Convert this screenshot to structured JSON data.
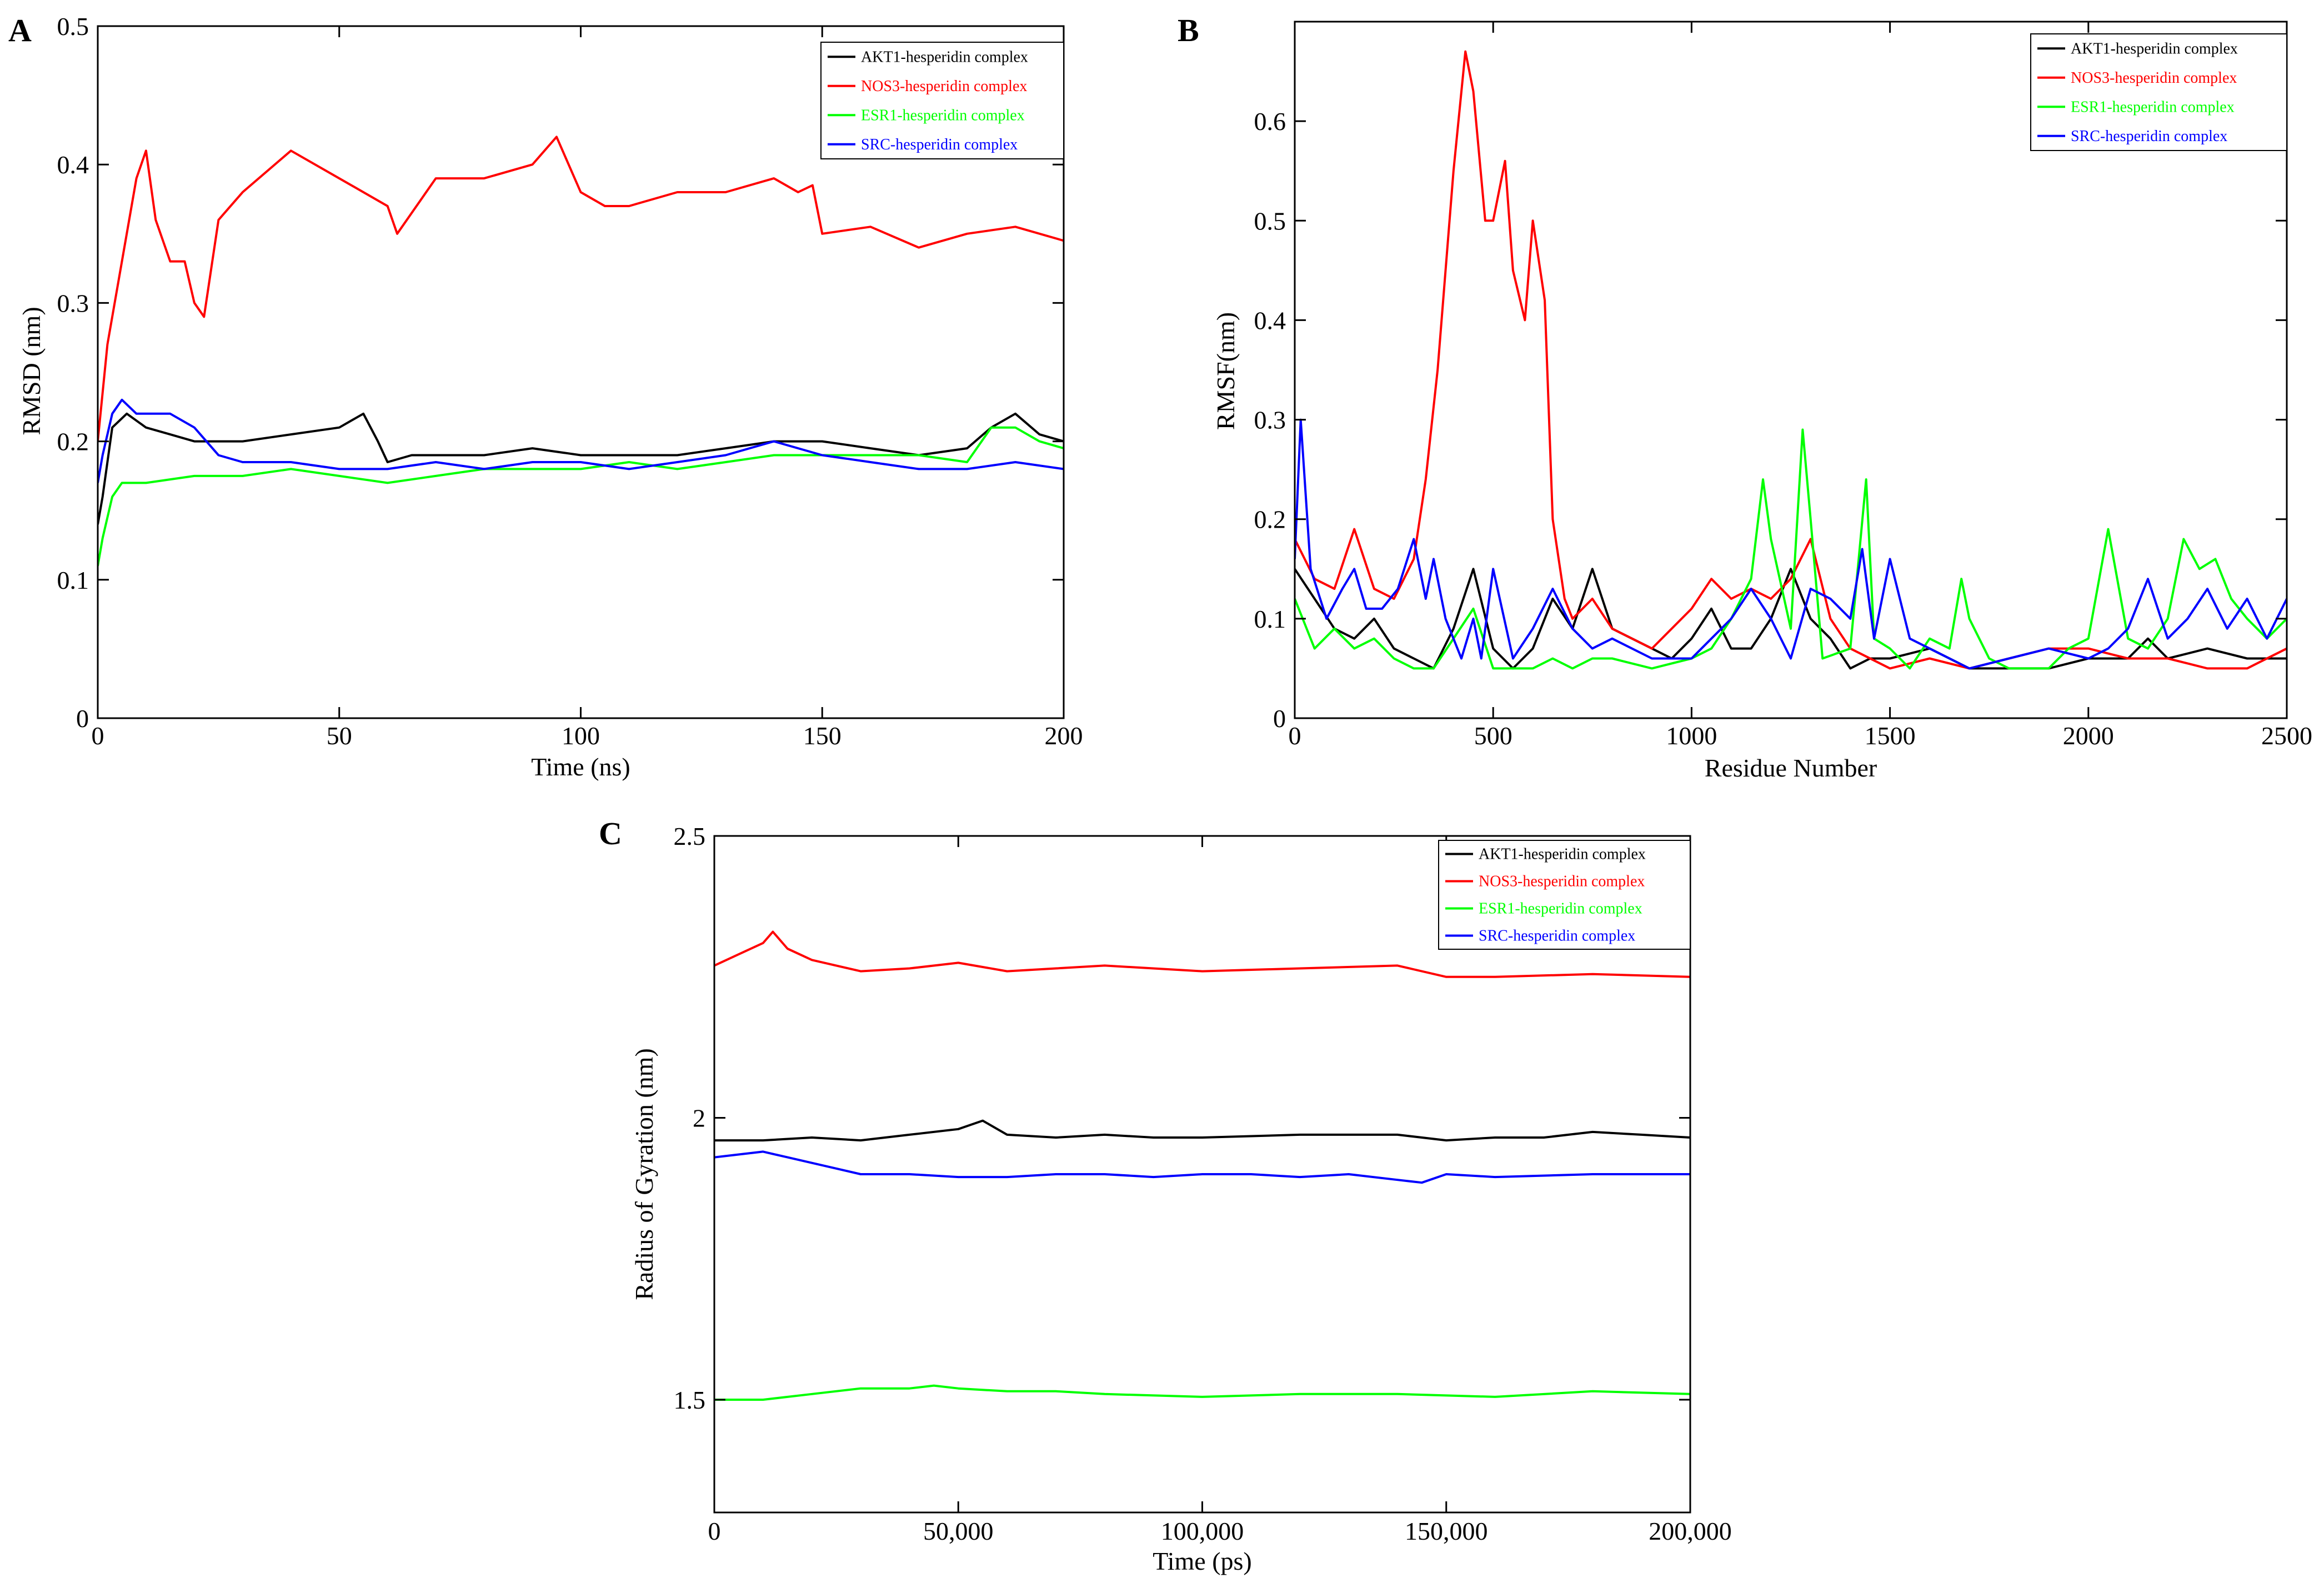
{
  "figure": {
    "panels": [
      "A",
      "B",
      "C"
    ]
  },
  "chart_data": [
    {
      "panel": "A",
      "type": "line",
      "xlabel": "Time (ns)",
      "ylabel": "RMSD (nm)",
      "xlim": [
        0,
        200
      ],
      "ylim": [
        0,
        0.5
      ],
      "xticks": [
        0,
        50,
        100,
        150,
        200
      ],
      "xtick_labels": [
        "0",
        "50",
        "100",
        "150",
        "200"
      ],
      "yticks": [
        0,
        0.1,
        0.2,
        0.3,
        0.4,
        0.5
      ],
      "ytick_labels": [
        "0",
        "0.1",
        "0.2",
        "0.3",
        "0.4",
        "0.5"
      ],
      "legend_position": "top-right",
      "series": [
        {
          "name": "AKT1-hesperidin complex",
          "color": "#000000",
          "x": [
            0,
            1,
            3,
            6,
            10,
            15,
            20,
            25,
            30,
            40,
            50,
            55,
            58,
            60,
            65,
            70,
            80,
            90,
            100,
            110,
            120,
            130,
            140,
            150,
            160,
            170,
            180,
            185,
            190,
            195,
            200
          ],
          "y": [
            0.14,
            0.16,
            0.21,
            0.22,
            0.21,
            0.205,
            0.2,
            0.2,
            0.2,
            0.205,
            0.21,
            0.22,
            0.2,
            0.185,
            0.19,
            0.19,
            0.19,
            0.195,
            0.19,
            0.19,
            0.19,
            0.195,
            0.2,
            0.2,
            0.195,
            0.19,
            0.195,
            0.21,
            0.22,
            0.205,
            0.2
          ]
        },
        {
          "name": "NOS3-hesperidin complex",
          "color": "#ff0000",
          "x": [
            0,
            2,
            5,
            8,
            10,
            12,
            15,
            18,
            20,
            22,
            25,
            30,
            40,
            50,
            55,
            60,
            62,
            70,
            80,
            90,
            95,
            100,
            105,
            110,
            120,
            130,
            140,
            145,
            148,
            150,
            160,
            170,
            180,
            190,
            200
          ],
          "y": [
            0.2,
            0.27,
            0.33,
            0.39,
            0.41,
            0.36,
            0.33,
            0.33,
            0.3,
            0.29,
            0.36,
            0.38,
            0.41,
            0.39,
            0.38,
            0.37,
            0.35,
            0.39,
            0.39,
            0.4,
            0.42,
            0.38,
            0.37,
            0.37,
            0.38,
            0.38,
            0.39,
            0.38,
            0.385,
            0.35,
            0.355,
            0.34,
            0.35,
            0.355,
            0.345
          ]
        },
        {
          "name": "ESR1-hesperidin complex",
          "color": "#00ff00",
          "x": [
            0,
            1,
            3,
            5,
            10,
            20,
            30,
            40,
            50,
            60,
            70,
            80,
            90,
            100,
            110,
            120,
            130,
            140,
            150,
            160,
            170,
            180,
            185,
            190,
            195,
            200
          ],
          "y": [
            0.11,
            0.13,
            0.16,
            0.17,
            0.17,
            0.175,
            0.175,
            0.18,
            0.175,
            0.17,
            0.175,
            0.18,
            0.18,
            0.18,
            0.185,
            0.18,
            0.185,
            0.19,
            0.19,
            0.19,
            0.19,
            0.185,
            0.21,
            0.21,
            0.2,
            0.195
          ]
        },
        {
          "name": "SRC-hesperidin complex",
          "color": "#0000ff",
          "x": [
            0,
            1,
            3,
            5,
            8,
            12,
            15,
            20,
            25,
            30,
            40,
            50,
            60,
            70,
            80,
            90,
            100,
            110,
            120,
            130,
            140,
            150,
            160,
            170,
            180,
            190,
            200
          ],
          "y": [
            0.17,
            0.19,
            0.22,
            0.23,
            0.22,
            0.22,
            0.22,
            0.21,
            0.19,
            0.185,
            0.185,
            0.18,
            0.18,
            0.185,
            0.18,
            0.185,
            0.185,
            0.18,
            0.185,
            0.19,
            0.2,
            0.19,
            0.185,
            0.18,
            0.18,
            0.185,
            0.18
          ]
        }
      ]
    },
    {
      "panel": "B",
      "type": "line",
      "xlabel": "Residue Number",
      "ylabel": "RMSF(nm)",
      "xlim": [
        0,
        2500
      ],
      "ylim": [
        0,
        0.7
      ],
      "xticks": [
        0,
        500,
        1000,
        1500,
        2000,
        2500
      ],
      "xtick_labels": [
        "0",
        "500",
        "1000",
        "1500",
        "2000",
        "2500"
      ],
      "yticks": [
        0,
        0.1,
        0.2,
        0.3,
        0.4,
        0.5,
        0.6
      ],
      "ytick_labels": [
        "0",
        "0.1",
        "0.2",
        "0.3",
        "0.4",
        "0.5",
        "0.6"
      ],
      "legend_position": "top-right",
      "series": [
        {
          "name": "AKT1-hesperidin complex",
          "color": "#000000",
          "x": [
            0,
            50,
            100,
            150,
            200,
            250,
            300,
            350,
            400,
            450,
            500,
            550,
            600,
            650,
            700,
            750,
            800,
            850,
            900,
            950,
            1000,
            1050,
            1100,
            1150,
            1200,
            1250,
            1300,
            1350,
            1400,
            1450,
            1500,
            1600,
            1700,
            1800,
            1900,
            2000,
            2100,
            2150,
            2200,
            2300,
            2400,
            2500
          ],
          "y": [
            0.15,
            0.12,
            0.09,
            0.08,
            0.1,
            0.07,
            0.06,
            0.05,
            0.09,
            0.15,
            0.07,
            0.05,
            0.07,
            0.12,
            0.09,
            0.15,
            0.09,
            0.08,
            0.07,
            0.06,
            0.08,
            0.11,
            0.07,
            0.07,
            0.1,
            0.15,
            0.1,
            0.08,
            0.05,
            0.06,
            0.06,
            0.07,
            0.05,
            0.05,
            0.05,
            0.06,
            0.06,
            0.08,
            0.06,
            0.07,
            0.06,
            0.06
          ]
        },
        {
          "name": "NOS3-hesperidin complex",
          "color": "#ff0000",
          "x": [
            0,
            50,
            100,
            150,
            200,
            250,
            300,
            330,
            360,
            400,
            430,
            450,
            480,
            500,
            530,
            550,
            580,
            600,
            630,
            650,
            680,
            700,
            750,
            800,
            900,
            1000,
            1050,
            1100,
            1150,
            1200,
            1250,
            1300,
            1350,
            1400,
            1500,
            1600,
            1700,
            1800,
            1900,
            2000,
            2100,
            2200,
            2300,
            2400,
            2500
          ],
          "y": [
            0.18,
            0.14,
            0.13,
            0.19,
            0.13,
            0.12,
            0.16,
            0.24,
            0.35,
            0.55,
            0.67,
            0.63,
            0.5,
            0.5,
            0.56,
            0.45,
            0.4,
            0.5,
            0.42,
            0.2,
            0.12,
            0.1,
            0.12,
            0.09,
            0.07,
            0.11,
            0.14,
            0.12,
            0.13,
            0.12,
            0.14,
            0.18,
            0.1,
            0.07,
            0.05,
            0.06,
            0.05,
            0.06,
            0.07,
            0.07,
            0.06,
            0.06,
            0.05,
            0.05,
            0.07
          ]
        },
        {
          "name": "ESR1-hesperidin complex",
          "color": "#00ff00",
          "x": [
            0,
            50,
            100,
            150,
            200,
            250,
            300,
            350,
            400,
            450,
            500,
            550,
            600,
            650,
            700,
            750,
            800,
            900,
            1000,
            1050,
            1100,
            1150,
            1180,
            1200,
            1250,
            1280,
            1300,
            1330,
            1400,
            1440,
            1460,
            1500,
            1550,
            1600,
            1650,
            1680,
            1700,
            1750,
            1800,
            1900,
            1950,
            2000,
            2050,
            2100,
            2150,
            2200,
            2240,
            2280,
            2320,
            2360,
            2400,
            2450,
            2500
          ],
          "y": [
            0.12,
            0.07,
            0.09,
            0.07,
            0.08,
            0.06,
            0.05,
            0.05,
            0.08,
            0.11,
            0.05,
            0.05,
            0.05,
            0.06,
            0.05,
            0.06,
            0.06,
            0.05,
            0.06,
            0.07,
            0.1,
            0.14,
            0.24,
            0.18,
            0.09,
            0.29,
            0.2,
            0.06,
            0.07,
            0.24,
            0.08,
            0.07,
            0.05,
            0.08,
            0.07,
            0.14,
            0.1,
            0.06,
            0.05,
            0.05,
            0.07,
            0.08,
            0.19,
            0.08,
            0.07,
            0.1,
            0.18,
            0.15,
            0.16,
            0.12,
            0.1,
            0.08,
            0.1
          ]
        },
        {
          "name": "SRC-hesperidin complex",
          "color": "#0000ff",
          "x": [
            0,
            15,
            40,
            80,
            120,
            150,
            180,
            220,
            260,
            300,
            330,
            350,
            380,
            420,
            450,
            470,
            500,
            550,
            600,
            650,
            700,
            750,
            800,
            900,
            1000,
            1050,
            1100,
            1150,
            1200,
            1250,
            1300,
            1350,
            1400,
            1430,
            1460,
            1500,
            1550,
            1600,
            1650,
            1700,
            1800,
            1900,
            2000,
            2050,
            2100,
            2150,
            2200,
            2250,
            2300,
            2350,
            2400,
            2450,
            2500
          ],
          "y": [
            0.16,
            0.3,
            0.15,
            0.1,
            0.13,
            0.15,
            0.11,
            0.11,
            0.13,
            0.18,
            0.12,
            0.16,
            0.1,
            0.06,
            0.1,
            0.06,
            0.15,
            0.06,
            0.09,
            0.13,
            0.09,
            0.07,
            0.08,
            0.06,
            0.06,
            0.08,
            0.1,
            0.13,
            0.1,
            0.06,
            0.13,
            0.12,
            0.1,
            0.17,
            0.08,
            0.16,
            0.08,
            0.07,
            0.06,
            0.05,
            0.06,
            0.07,
            0.06,
            0.07,
            0.09,
            0.14,
            0.08,
            0.1,
            0.13,
            0.09,
            0.12,
            0.08,
            0.12
          ]
        }
      ]
    },
    {
      "panel": "C",
      "type": "line",
      "xlabel": "Time (ps)",
      "ylabel": "Radius of Gyration (nm)",
      "xlim": [
        0,
        200000
      ],
      "ylim": [
        1.3,
        2.5
      ],
      "xticks": [
        0,
        50000,
        100000,
        150000,
        200000
      ],
      "xtick_labels": [
        "0",
        "50,000",
        "100,000",
        "150,000",
        "200,000"
      ],
      "yticks": [
        1.5,
        2,
        2.5
      ],
      "ytick_labels": [
        "1.5",
        "2",
        "2.5"
      ],
      "legend_position": "top-right",
      "series": [
        {
          "name": "AKT1-hesperidin complex",
          "color": "#000000",
          "x": [
            0,
            10000,
            20000,
            30000,
            40000,
            50000,
            55000,
            60000,
            70000,
            80000,
            90000,
            100000,
            120000,
            140000,
            150000,
            160000,
            170000,
            180000,
            190000,
            200000
          ],
          "y": [
            1.96,
            1.96,
            1.965,
            1.96,
            1.97,
            1.98,
            1.995,
            1.97,
            1.965,
            1.97,
            1.965,
            1.965,
            1.97,
            1.97,
            1.96,
            1.965,
            1.965,
            1.975,
            1.97,
            1.965
          ]
        },
        {
          "name": "NOS3-hesperidin complex",
          "color": "#ff0000",
          "x": [
            0,
            5000,
            10000,
            12000,
            15000,
            20000,
            30000,
            40000,
            50000,
            60000,
            70000,
            80000,
            100000,
            120000,
            140000,
            150000,
            160000,
            180000,
            200000
          ],
          "y": [
            2.27,
            2.29,
            2.31,
            2.33,
            2.3,
            2.28,
            2.26,
            2.265,
            2.275,
            2.26,
            2.265,
            2.27,
            2.26,
            2.265,
            2.27,
            2.25,
            2.25,
            2.255,
            2.25
          ]
        },
        {
          "name": "ESR1-hesperidin complex",
          "color": "#00ff00",
          "x": [
            0,
            10000,
            20000,
            30000,
            40000,
            45000,
            50000,
            60000,
            70000,
            80000,
            100000,
            120000,
            140000,
            160000,
            180000,
            200000
          ],
          "y": [
            1.5,
            1.5,
            1.51,
            1.52,
            1.52,
            1.525,
            1.52,
            1.515,
            1.515,
            1.51,
            1.505,
            1.51,
            1.51,
            1.505,
            1.515,
            1.51
          ]
        },
        {
          "name": "SRC-hesperidin complex",
          "color": "#0000ff",
          "x": [
            0,
            5000,
            10000,
            15000,
            20000,
            25000,
            30000,
            40000,
            50000,
            60000,
            70000,
            80000,
            90000,
            100000,
            110000,
            120000,
            130000,
            140000,
            145000,
            150000,
            160000,
            180000,
            200000
          ],
          "y": [
            1.93,
            1.935,
            1.94,
            1.93,
            1.92,
            1.91,
            1.9,
            1.9,
            1.895,
            1.895,
            1.9,
            1.9,
            1.895,
            1.9,
            1.9,
            1.895,
            1.9,
            1.89,
            1.885,
            1.9,
            1.895,
            1.9,
            1.9
          ]
        }
      ]
    }
  ]
}
